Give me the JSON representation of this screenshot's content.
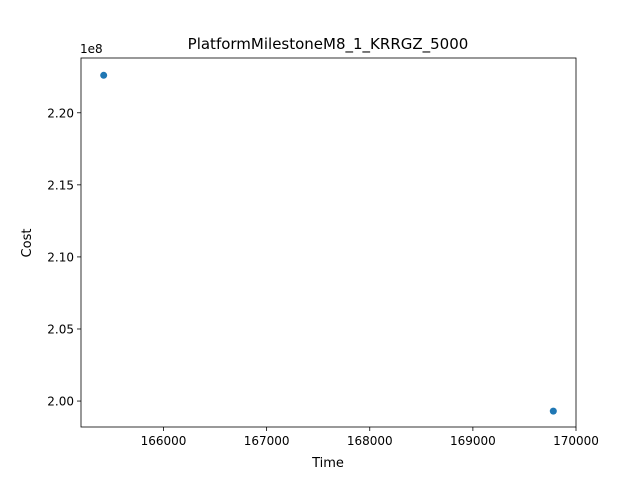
{
  "chart_data": {
    "type": "scatter",
    "title": "PlatformMilestoneM8_1_KRRGZ_5000",
    "xlabel": "Time",
    "ylabel": "Cost",
    "y_offset_label": "1e8",
    "xlim": [
      165200,
      170000
    ],
    "ylim": [
      198200000,
      223800000
    ],
    "x_ticks": [
      166000,
      167000,
      168000,
      169000,
      170000
    ],
    "x_tick_labels": [
      "166000",
      "167000",
      "168000",
      "169000",
      "170000"
    ],
    "y_ticks": [
      200000000,
      205000000,
      210000000,
      215000000,
      220000000
    ],
    "y_tick_labels": [
      "2.00",
      "2.05",
      "2.10",
      "2.15",
      "2.20"
    ],
    "grid": false,
    "marker_color": "#1f77b4",
    "points": [
      {
        "x": 165420,
        "y": 222600000
      },
      {
        "x": 169780,
        "y": 199300000
      }
    ]
  }
}
